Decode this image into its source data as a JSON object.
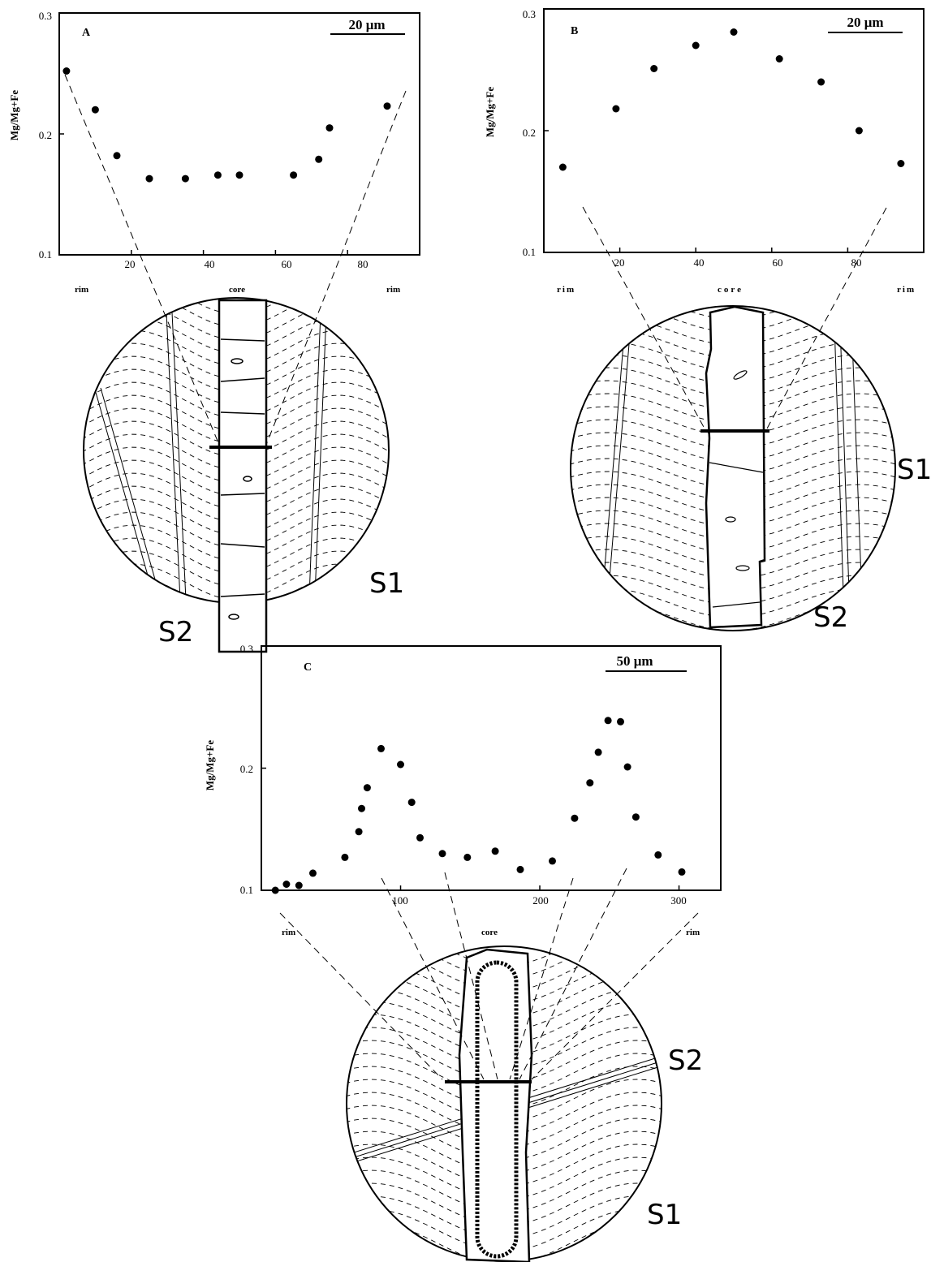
{
  "chart_data": [
    {
      "panel": "A",
      "type": "scatter",
      "ylabel": "Mg/Mg+Fe",
      "ylim": [
        0.1,
        0.3
      ],
      "yticks": [
        "0.1",
        "0.2",
        "0.3"
      ],
      "xlim": [
        0,
        100
      ],
      "xticks": [
        "20",
        "40",
        "60",
        "80"
      ],
      "xtick_values": [
        20,
        40,
        60,
        80
      ],
      "scale_bar": "20 μm",
      "side_labels": {
        "left": "rim",
        "center": "core",
        "right": "rim"
      },
      "x": [
        2,
        10,
        16,
        25,
        35,
        44,
        50,
        65,
        72,
        75,
        91
      ],
      "y": [
        0.252,
        0.22,
        0.182,
        0.163,
        0.163,
        0.166,
        0.166,
        0.166,
        0.179,
        0.205,
        0.223
      ],
      "foliation_labels": [
        "S1",
        "S2"
      ]
    },
    {
      "panel": "B",
      "type": "scatter",
      "ylabel": "Mg/Mg+Fe",
      "ylim": [
        0.1,
        0.3
      ],
      "yticks": [
        "0.1",
        "0.2",
        "0.3"
      ],
      "xlim": [
        0,
        100
      ],
      "xticks": [
        "20",
        "40",
        "60",
        "80"
      ],
      "xtick_values": [
        20,
        40,
        60,
        80
      ],
      "scale_bar": "20 μm",
      "side_labels": {
        "left": "rim",
        "center": "core",
        "right": "rim"
      },
      "x": [
        5,
        19,
        29,
        40,
        50,
        62,
        73,
        83,
        94
      ],
      "y": [
        0.17,
        0.218,
        0.251,
        0.27,
        0.281,
        0.259,
        0.24,
        0.2,
        0.173
      ],
      "foliation_labels": [
        "S1",
        "S2"
      ]
    },
    {
      "panel": "C",
      "type": "scatter",
      "ylabel": "Mg/Mg+Fe",
      "ylim": [
        0.1,
        0.3
      ],
      "yticks": [
        "0.1",
        "0.2",
        "0.3"
      ],
      "xlim": [
        0,
        330
      ],
      "xticks": [
        "100",
        "200",
        "300"
      ],
      "xtick_values": [
        100,
        200,
        300
      ],
      "scale_bar": "50 μm",
      "side_labels": {
        "left": "rim",
        "center": "core",
        "right": "rim"
      },
      "x": [
        10,
        18,
        27,
        37,
        60,
        70,
        72,
        76,
        86,
        100,
        108,
        114,
        130,
        148,
        168,
        186,
        209,
        225,
        236,
        242,
        249,
        258,
        263,
        269,
        285,
        302
      ],
      "y": [
        0.1,
        0.105,
        0.104,
        0.114,
        0.127,
        0.148,
        0.167,
        0.184,
        0.216,
        0.203,
        0.172,
        0.143,
        0.13,
        0.127,
        0.132,
        0.117,
        0.124,
        0.159,
        0.188,
        0.213,
        0.239,
        0.238,
        0.201,
        0.16,
        0.129,
        0.115
      ],
      "foliation_labels": [
        "S2",
        "S1"
      ]
    }
  ]
}
